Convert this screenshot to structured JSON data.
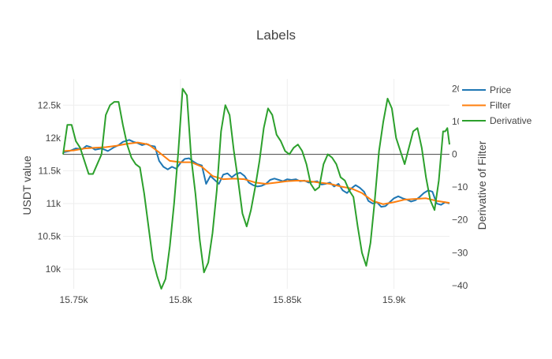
{
  "chart_data": {
    "type": "line",
    "title": "Labels",
    "xlabel": "",
    "ylabel": "USDT value",
    "y2label": "Derivative of Filter",
    "xlim": [
      15745,
      15926
    ],
    "ylim": [
      9700,
      12900
    ],
    "y2lim": [
      -41,
      23
    ],
    "xticks": [
      15750,
      15800,
      15850,
      15900
    ],
    "xtick_labels": [
      "15.75k",
      "15.8k",
      "15.85k",
      "15.9k"
    ],
    "yticks": [
      10000,
      10500,
      11000,
      11500,
      12000,
      12500
    ],
    "ytick_labels": [
      "10k",
      "10.5k",
      "11k",
      "11.5k",
      "12k",
      "12.5k"
    ],
    "y2ticks": [
      -40,
      -30,
      -20,
      -10,
      0,
      10,
      20
    ],
    "y2tick_labels": [
      "−40",
      "−30",
      "−20",
      "−10",
      "0",
      "10",
      "20"
    ],
    "grid": true,
    "zero_line_right_axis": true,
    "legend_position": "top-right",
    "series": [
      {
        "name": "Price",
        "axis": "left",
        "color": "#1f77b4",
        "points": [
          [
            15745,
            11780
          ],
          [
            15748,
            11800
          ],
          [
            15751,
            11840
          ],
          [
            15754,
            11830
          ],
          [
            15756,
            11880
          ],
          [
            15758,
            11860
          ],
          [
            15760,
            11820
          ],
          [
            15763,
            11840
          ],
          [
            15766,
            11800
          ],
          [
            15769,
            11860
          ],
          [
            15771,
            11890
          ],
          [
            15773,
            11940
          ],
          [
            15776,
            11970
          ],
          [
            15778,
            11940
          ],
          [
            15780,
            11920
          ],
          [
            15782,
            11890
          ],
          [
            15784,
            11910
          ],
          [
            15786,
            11880
          ],
          [
            15788,
            11870
          ],
          [
            15790,
            11650
          ],
          [
            15792,
            11560
          ],
          [
            15794,
            11520
          ],
          [
            15796,
            11560
          ],
          [
            15798,
            11530
          ],
          [
            15800,
            11620
          ],
          [
            15802,
            11680
          ],
          [
            15804,
            11690
          ],
          [
            15806,
            11640
          ],
          [
            15808,
            11600
          ],
          [
            15810,
            11580
          ],
          [
            15812,
            11300
          ],
          [
            15814,
            11420
          ],
          [
            15816,
            11360
          ],
          [
            15818,
            11300
          ],
          [
            15820,
            11440
          ],
          [
            15822,
            11460
          ],
          [
            15824,
            11400
          ],
          [
            15826,
            11450
          ],
          [
            15828,
            11470
          ],
          [
            15830,
            11420
          ],
          [
            15832,
            11320
          ],
          [
            15834,
            11280
          ],
          [
            15836,
            11260
          ],
          [
            15838,
            11270
          ],
          [
            15840,
            11300
          ],
          [
            15842,
            11360
          ],
          [
            15844,
            11380
          ],
          [
            15846,
            11360
          ],
          [
            15848,
            11340
          ],
          [
            15850,
            11370
          ],
          [
            15852,
            11360
          ],
          [
            15854,
            11370
          ],
          [
            15856,
            11340
          ],
          [
            15858,
            11350
          ],
          [
            15860,
            11320
          ],
          [
            15862,
            11330
          ],
          [
            15864,
            11340
          ],
          [
            15866,
            11290
          ],
          [
            15868,
            11300
          ],
          [
            15870,
            11320
          ],
          [
            15872,
            11260
          ],
          [
            15874,
            11300
          ],
          [
            15876,
            11200
          ],
          [
            15878,
            11160
          ],
          [
            15880,
            11230
          ],
          [
            15882,
            11280
          ],
          [
            15884,
            11240
          ],
          [
            15886,
            11180
          ],
          [
            15888,
            11040
          ],
          [
            15890,
            11000
          ],
          [
            15892,
            11020
          ],
          [
            15894,
            10950
          ],
          [
            15896,
            10960
          ],
          [
            15898,
            11020
          ],
          [
            15900,
            11080
          ],
          [
            15902,
            11110
          ],
          [
            15904,
            11080
          ],
          [
            15906,
            11060
          ],
          [
            15908,
            11030
          ],
          [
            15910,
            11050
          ],
          [
            15912,
            11100
          ],
          [
            15914,
            11160
          ],
          [
            15916,
            11200
          ],
          [
            15918,
            11180
          ],
          [
            15920,
            11000
          ],
          [
            15922,
            10980
          ],
          [
            15924,
            11020
          ],
          [
            15926,
            11000
          ]
        ]
      },
      {
        "name": "Filter",
        "axis": "left",
        "color": "#ff7f0e",
        "points": [
          [
            15745,
            11800
          ],
          [
            15750,
            11810
          ],
          [
            15755,
            11840
          ],
          [
            15760,
            11850
          ],
          [
            15765,
            11860
          ],
          [
            15770,
            11880
          ],
          [
            15775,
            11910
          ],
          [
            15780,
            11930
          ],
          [
            15785,
            11900
          ],
          [
            15790,
            11780
          ],
          [
            15795,
            11650
          ],
          [
            15800,
            11630
          ],
          [
            15805,
            11630
          ],
          [
            15810,
            11560
          ],
          [
            15815,
            11420
          ],
          [
            15820,
            11370
          ],
          [
            15825,
            11380
          ],
          [
            15830,
            11370
          ],
          [
            15835,
            11320
          ],
          [
            15840,
            11300
          ],
          [
            15845,
            11320
          ],
          [
            15850,
            11340
          ],
          [
            15855,
            11350
          ],
          [
            15860,
            11340
          ],
          [
            15865,
            11320
          ],
          [
            15870,
            11300
          ],
          [
            15875,
            11260
          ],
          [
            15880,
            11230
          ],
          [
            15885,
            11160
          ],
          [
            15890,
            11040
          ],
          [
            15895,
            10990
          ],
          [
            15900,
            11020
          ],
          [
            15905,
            11060
          ],
          [
            15910,
            11070
          ],
          [
            15915,
            11080
          ],
          [
            15920,
            11040
          ],
          [
            15926,
            11010
          ]
        ]
      },
      {
        "name": "Derivative",
        "axis": "right",
        "color": "#2ca02c",
        "points": [
          [
            15745,
            0
          ],
          [
            15747,
            9
          ],
          [
            15749,
            9
          ],
          [
            15751,
            4
          ],
          [
            15753,
            2
          ],
          [
            15755,
            -2
          ],
          [
            15757,
            -6
          ],
          [
            15759,
            -6
          ],
          [
            15761,
            -3
          ],
          [
            15763,
            0
          ],
          [
            15765,
            12
          ],
          [
            15767,
            15
          ],
          [
            15769,
            16
          ],
          [
            15771,
            16
          ],
          [
            15773,
            9
          ],
          [
            15775,
            3
          ],
          [
            15777,
            -1
          ],
          [
            15779,
            -3
          ],
          [
            15781,
            -4
          ],
          [
            15783,
            -12
          ],
          [
            15785,
            -22
          ],
          [
            15787,
            -32
          ],
          [
            15789,
            -37
          ],
          [
            15791,
            -41
          ],
          [
            15793,
            -38
          ],
          [
            15795,
            -28
          ],
          [
            15797,
            -15
          ],
          [
            15799,
            1
          ],
          [
            15801,
            20
          ],
          [
            15803,
            18
          ],
          [
            15805,
            -1
          ],
          [
            15807,
            -12
          ],
          [
            15809,
            -26
          ],
          [
            15811,
            -36
          ],
          [
            15813,
            -33
          ],
          [
            15815,
            -24
          ],
          [
            15817,
            -11
          ],
          [
            15819,
            7
          ],
          [
            15821,
            15
          ],
          [
            15823,
            12
          ],
          [
            15825,
            1
          ],
          [
            15827,
            -8
          ],
          [
            15829,
            -18
          ],
          [
            15831,
            -22
          ],
          [
            15833,
            -17
          ],
          [
            15835,
            -10
          ],
          [
            15837,
            -2
          ],
          [
            15839,
            8
          ],
          [
            15841,
            14
          ],
          [
            15843,
            12
          ],
          [
            15845,
            6
          ],
          [
            15847,
            4
          ],
          [
            15849,
            1
          ],
          [
            15851,
            0
          ],
          [
            15853,
            2
          ],
          [
            15855,
            3
          ],
          [
            15857,
            1
          ],
          [
            15859,
            -3
          ],
          [
            15861,
            -9
          ],
          [
            15863,
            -11
          ],
          [
            15865,
            -10
          ],
          [
            15867,
            -3
          ],
          [
            15869,
            0
          ],
          [
            15871,
            -1
          ],
          [
            15873,
            -3
          ],
          [
            15875,
            -7
          ],
          [
            15877,
            -8
          ],
          [
            15879,
            -11
          ],
          [
            15881,
            -13
          ],
          [
            15883,
            -22
          ],
          [
            15885,
            -30
          ],
          [
            15887,
            -34
          ],
          [
            15889,
            -27
          ],
          [
            15891,
            -14
          ],
          [
            15893,
            1
          ],
          [
            15895,
            10
          ],
          [
            15897,
            17
          ],
          [
            15899,
            14
          ],
          [
            15901,
            5
          ],
          [
            15903,
            1
          ],
          [
            15905,
            -3
          ],
          [
            15907,
            2
          ],
          [
            15909,
            7
          ],
          [
            15911,
            8
          ],
          [
            15913,
            2
          ],
          [
            15915,
            -7
          ],
          [
            15917,
            -14
          ],
          [
            15919,
            -17
          ],
          [
            15921,
            -8
          ],
          [
            15923,
            7
          ],
          [
            15924,
            7
          ],
          [
            15925,
            8
          ],
          [
            15926,
            3
          ]
        ]
      }
    ]
  }
}
